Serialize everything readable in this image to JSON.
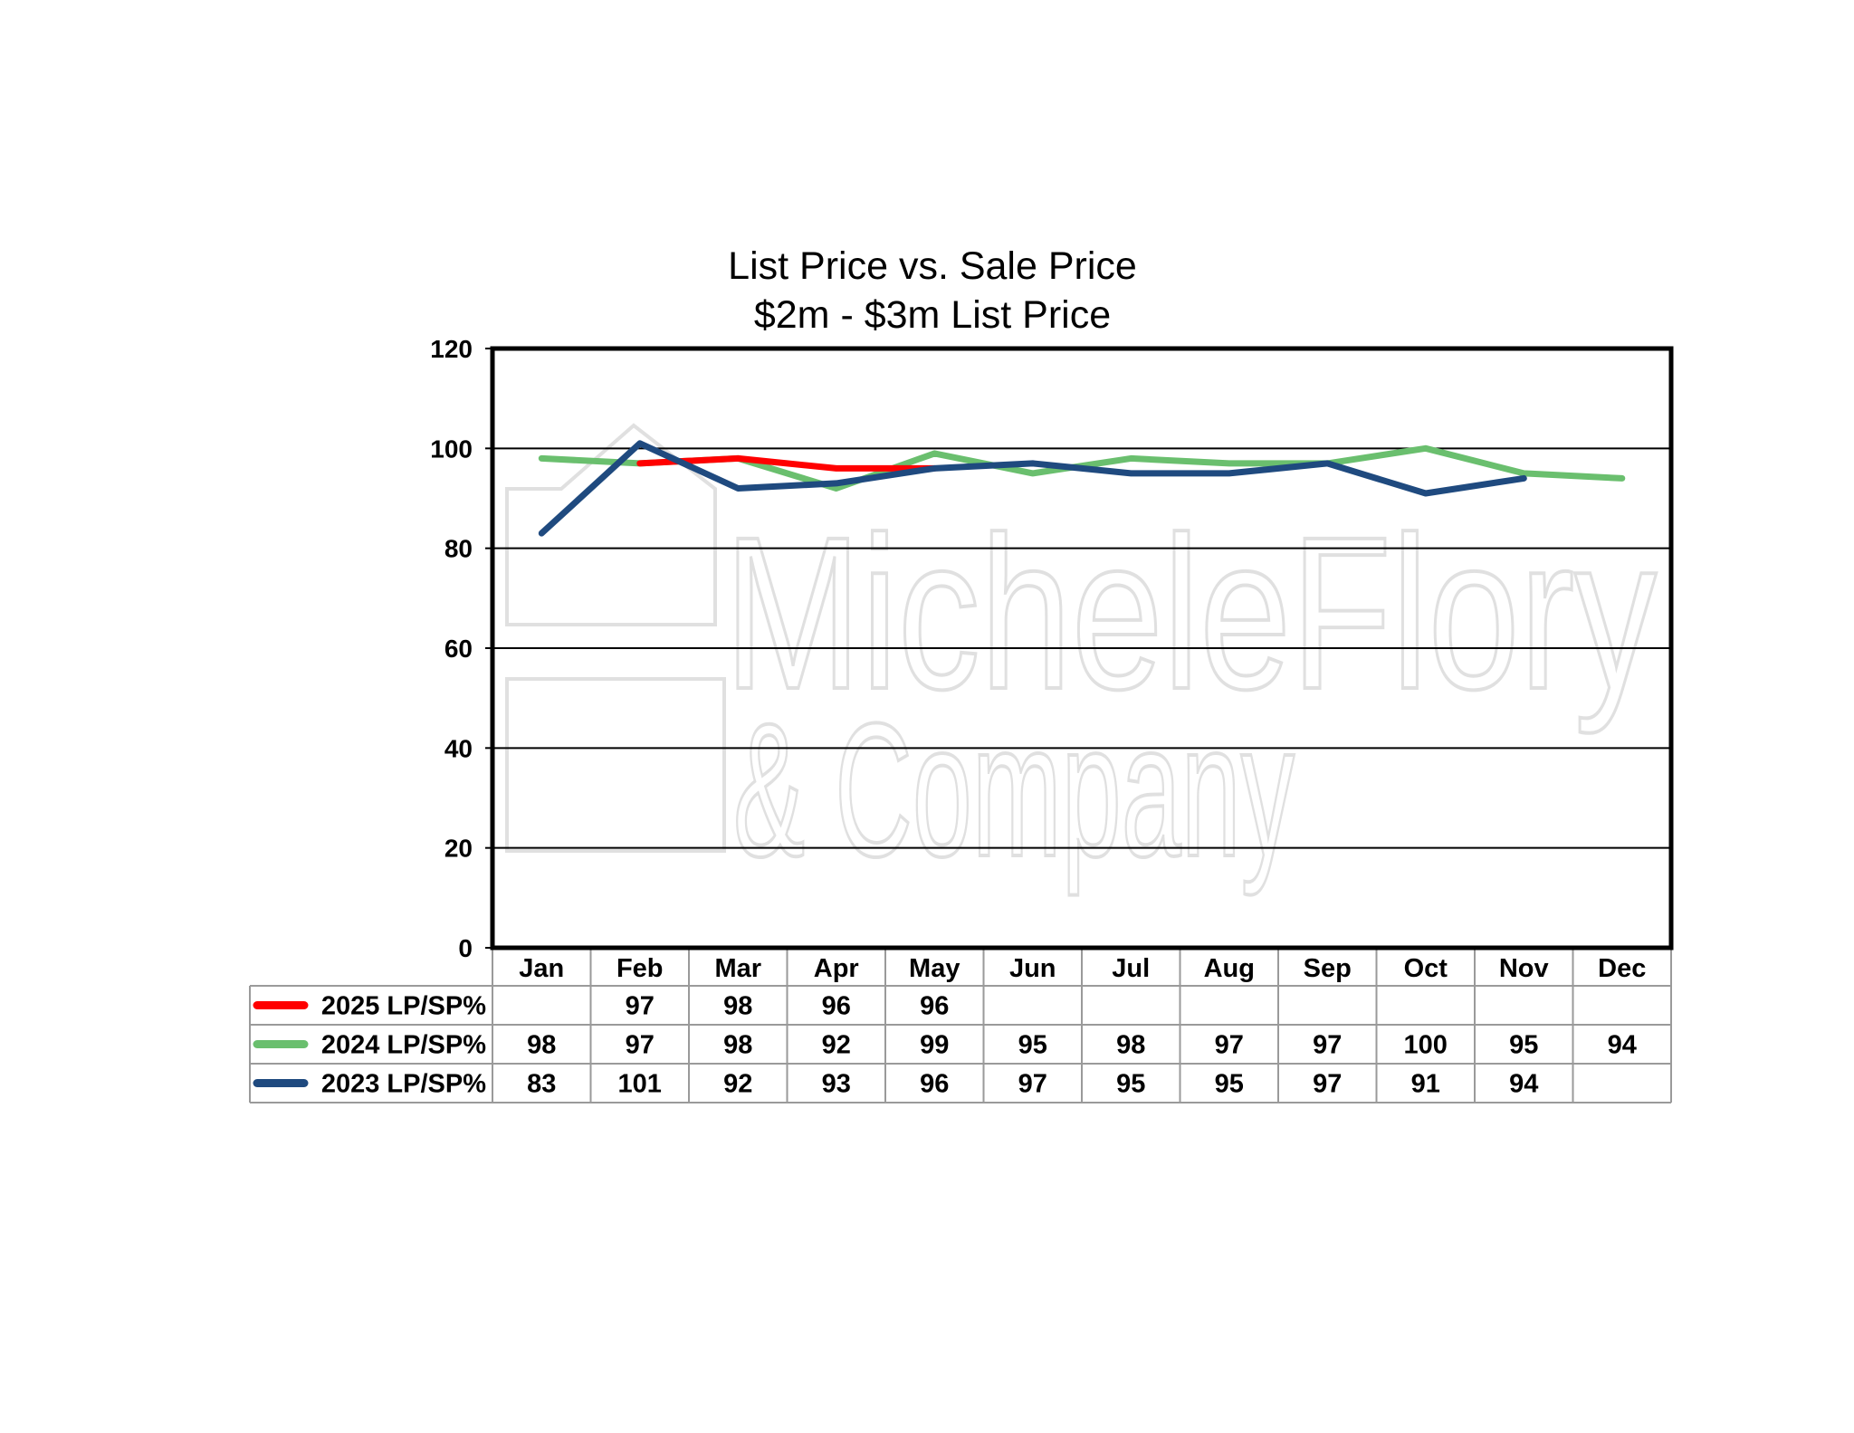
{
  "chart_data": {
    "type": "line",
    "title": "List Price vs. Sale Price",
    "subtitle": "$2m - $3m List Price",
    "watermark": {
      "line1": "MicheleFlory",
      "line2": "& Company"
    },
    "categories": [
      "Jan",
      "Feb",
      "Mar",
      "Apr",
      "May",
      "Jun",
      "Jul",
      "Aug",
      "Sep",
      "Oct",
      "Nov",
      "Dec"
    ],
    "ylim": [
      0,
      120
    ],
    "yticks": [
      0,
      20,
      40,
      60,
      80,
      100,
      120
    ],
    "grid": true,
    "legend": "data-table-left",
    "series": [
      {
        "name": "2025 LP/SP%",
        "color": "#ff0000",
        "values": [
          null,
          97,
          98,
          96,
          96,
          null,
          null,
          null,
          null,
          null,
          null,
          null
        ]
      },
      {
        "name": "2024 LP/SP%",
        "color": "#6abf6e",
        "values": [
          98,
          97,
          98,
          92,
          99,
          95,
          98,
          97,
          97,
          100,
          95,
          94
        ]
      },
      {
        "name": "2023 LP/SP%",
        "color": "#1f4a7f",
        "values": [
          83,
          101,
          92,
          93,
          96,
          97,
          95,
          95,
          97,
          91,
          94,
          null
        ]
      }
    ]
  }
}
